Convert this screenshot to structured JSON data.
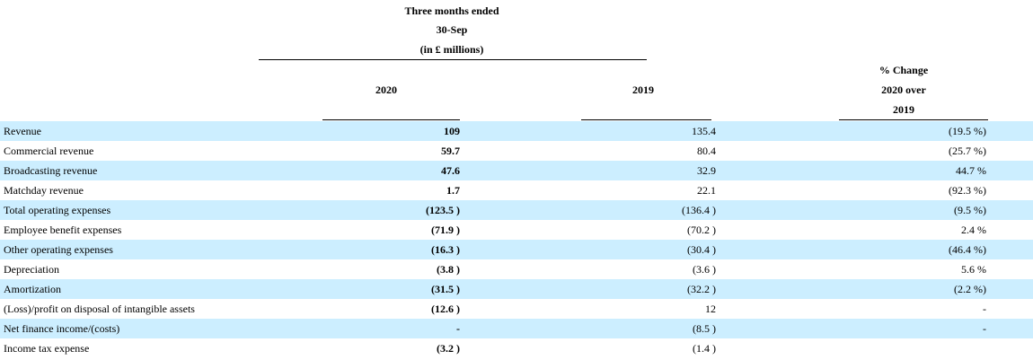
{
  "header": {
    "period_line1": "Three months ended",
    "period_line2": "30-Sep",
    "period_line3": "(in £ millions)",
    "col_2020": "2020",
    "col_2019": "2019",
    "col_change_line1": "% Change",
    "col_change_line2": "2020 over",
    "col_change_line3": "2019"
  },
  "rows": [
    {
      "label": "Revenue",
      "v2020": "109",
      "v2019": "135.4",
      "change": "(19.5 %)"
    },
    {
      "label": "Commercial revenue",
      "v2020": "59.7",
      "v2019": "80.4",
      "change": "(25.7 %)"
    },
    {
      "label": "Broadcasting revenue",
      "v2020": "47.6",
      "v2019": "32.9",
      "change": "44.7 %"
    },
    {
      "label": "Matchday revenue",
      "v2020": "1.7",
      "v2019": "22.1",
      "change": "(92.3 %)"
    },
    {
      "label": "Total operating expenses",
      "v2020": "(123.5 )",
      "v2019": "(136.4 )",
      "change": "(9.5 %)"
    },
    {
      "label": "Employee benefit expenses",
      "v2020": "(71.9 )",
      "v2019": "(70.2 )",
      "change": "2.4 %"
    },
    {
      "label": "Other operating expenses",
      "v2020": "(16.3 )",
      "v2019": "(30.4 )",
      "change": "(46.4 %)"
    },
    {
      "label": "Depreciation",
      "v2020": "(3.8 )",
      "v2019": "(3.6 )",
      "change": "5.6 %"
    },
    {
      "label": "Amortization",
      "v2020": "(31.5 )",
      "v2019": "(32.2 )",
      "change": "(2.2 %)"
    },
    {
      "label": "(Loss)/profit on disposal of intangible assets",
      "v2020": "(12.6 )",
      "v2019": "12",
      "change": "-"
    },
    {
      "label": "Net finance income/(costs)",
      "v2020": "-",
      "v2019": "(8.5 )",
      "change": "-"
    },
    {
      "label": "Income tax expense",
      "v2020": "(3.2 )",
      "v2019": "(1.4 )",
      "change": ""
    }
  ]
}
